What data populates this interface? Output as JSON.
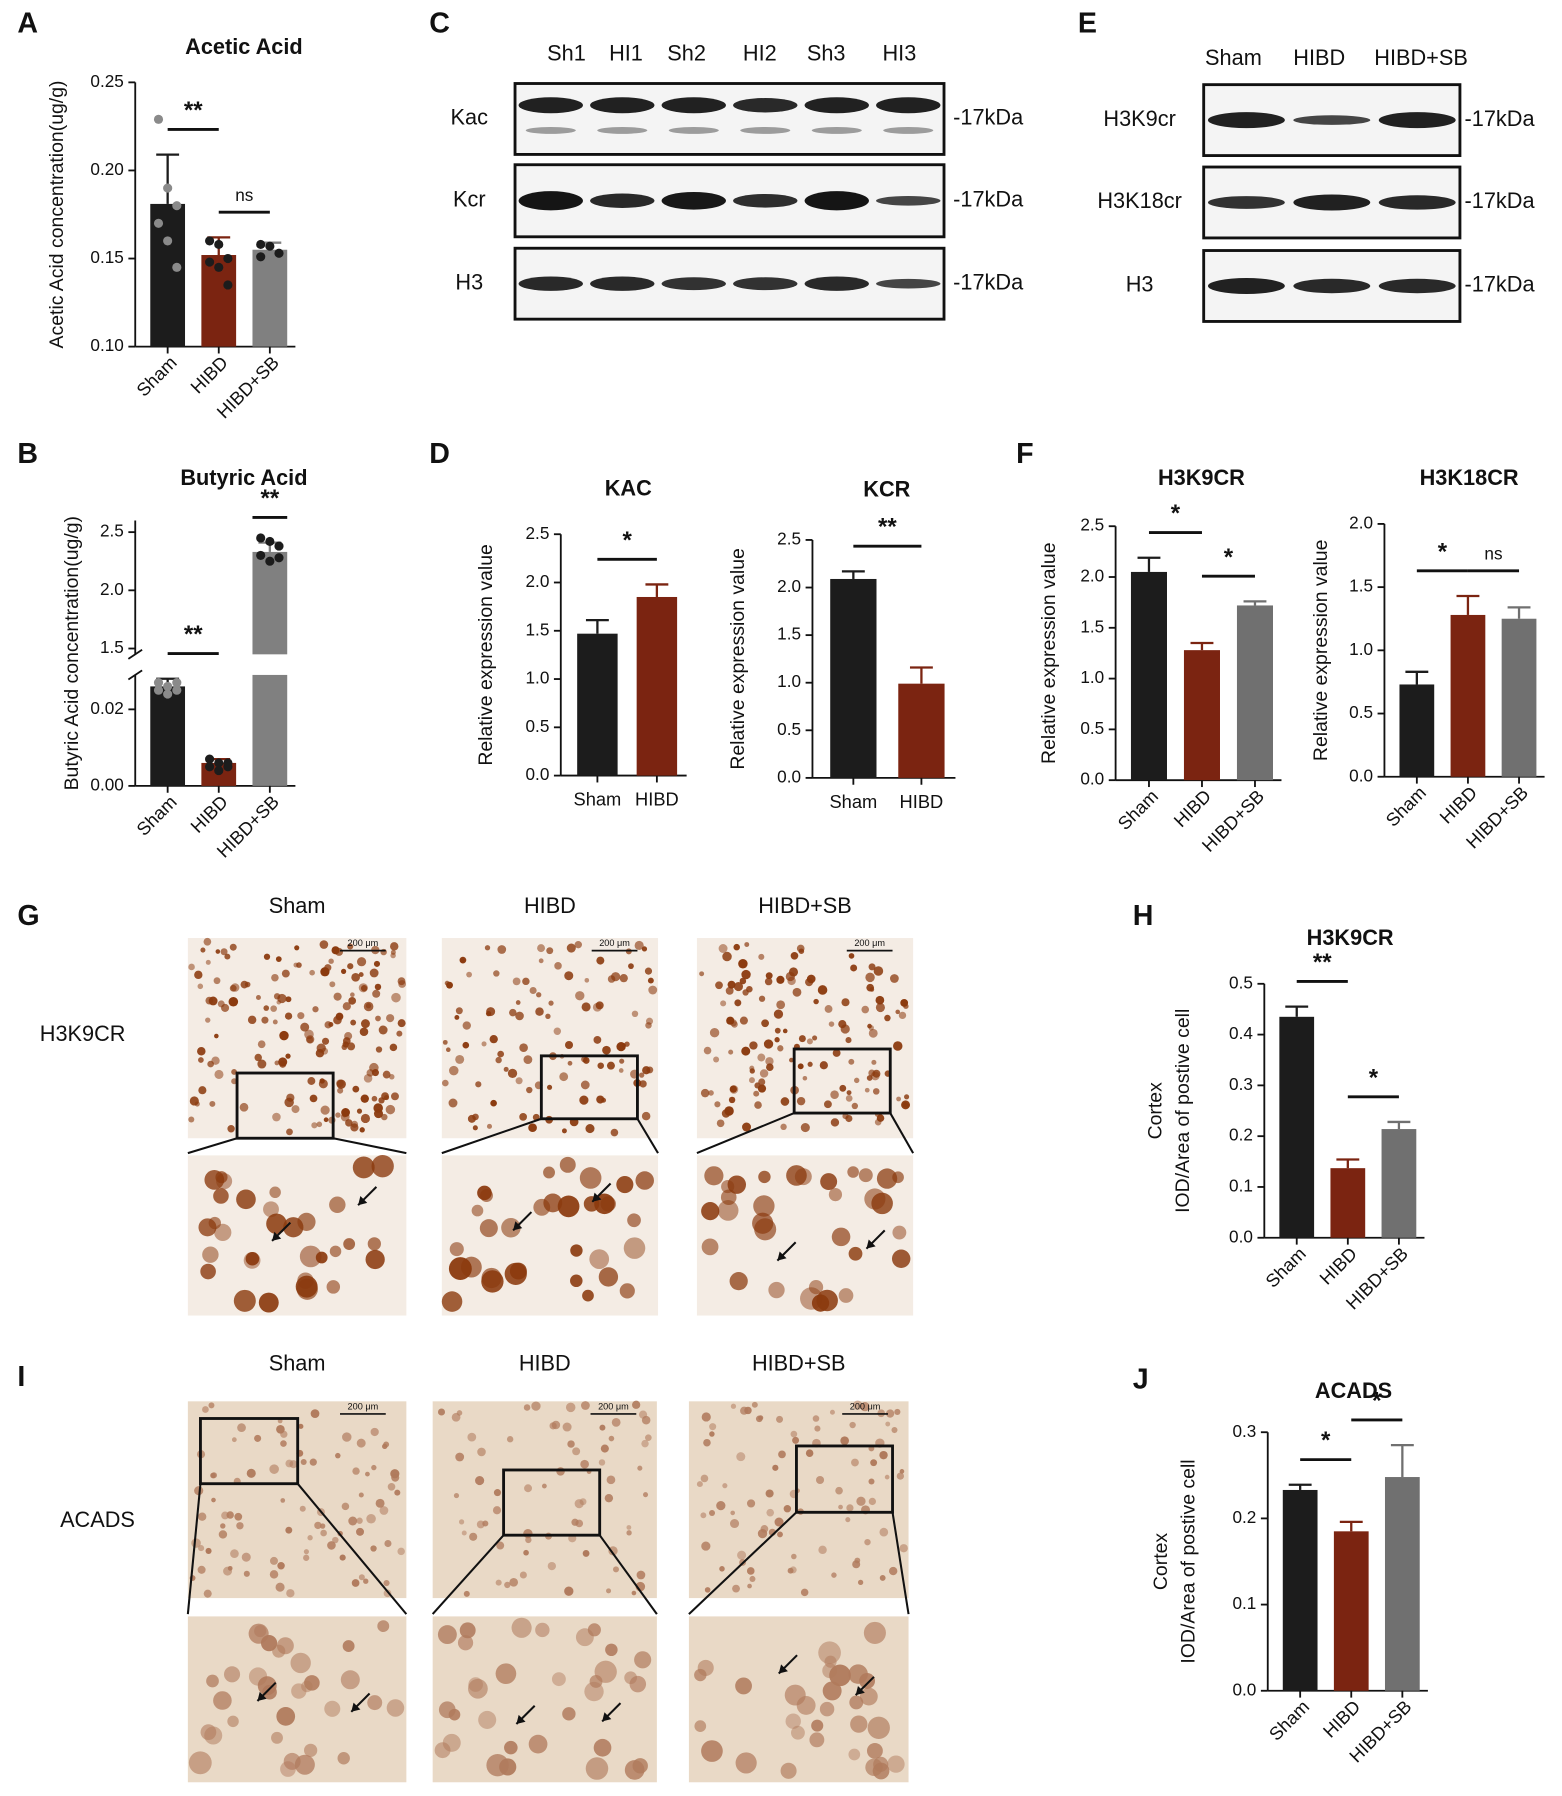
{
  "panel_labels": [
    "A",
    "B",
    "C",
    "D",
    "E",
    "F",
    "G",
    "H",
    "I",
    "J"
  ],
  "chart_data": [
    {
      "type": "bar",
      "title": "Acetic Acid",
      "ylabel": "Acetic  Acid concentration(ug/g)",
      "categories": [
        "Sham",
        "HIBD",
        "HIBD+SB"
      ],
      "colors": [
        "#1c1c1c",
        "#7b2411",
        "#808080"
      ],
      "values": [
        0.181,
        0.152,
        0.155
      ],
      "errors": [
        0.028,
        0.01,
        0.004
      ],
      "points": [
        [
          0.229,
          0.19,
          0.18,
          0.17,
          0.16,
          0.145
        ],
        [
          0.16,
          0.158,
          0.15,
          0.148,
          0.145,
          0.135
        ],
        [
          0.158,
          0.157,
          0.153,
          0.151
        ]
      ],
      "ylim": [
        0.1,
        0.25
      ],
      "yticks": [
        {
          "value": 0.1,
          "label": "0.10"
        },
        0.15,
        {
          "value": 0.2,
          "label": "0.20"
        },
        0.25
      ],
      "xlabel_rotation": 45,
      "annotations": [
        {
          "text": "**",
          "pair": [
            0,
            1
          ]
        },
        {
          "text": "ns",
          "pair": [
            1,
            2
          ]
        }
      ]
    },
    {
      "type": "bar",
      "title": "Butyric Acid",
      "ylabel": "Butyric  Acid concentration(ug/g)",
      "categories": [
        "Sham",
        "HIBD",
        "HIBD+SB"
      ],
      "colors": [
        "#1c1c1c",
        "#7b2411",
        "#808080"
      ],
      "values": [
        0.026,
        0.006,
        2.33
      ],
      "errors": [
        0.002,
        0.001,
        0.08
      ],
      "points": [
        [
          0.027,
          0.026,
          0.025,
          0.025,
          0.024,
          0.027
        ],
        [
          0.007,
          0.006,
          0.005,
          0.005,
          0.004,
          0.006
        ],
        [
          2.45,
          2.42,
          2.38,
          2.3,
          2.25,
          2.28
        ]
      ],
      "segments": [
        {
          "ylim": [
            0,
            0.029
          ],
          "yticks": [
            {
              "value": 0,
              "label": "0.00"
            },
            0.02
          ]
        },
        {
          "ylim": [
            1.45,
            2.6
          ],
          "yticks": [
            1.5,
            {
              "value": 2,
              "label": "2.0"
            },
            2.5
          ]
        }
      ],
      "xlabel_rotation": 45,
      "annotations": [
        {
          "text": "**",
          "pair": [
            0,
            1
          ]
        },
        {
          "text": "**",
          "pair": [
            2,
            2
          ]
        }
      ]
    },
    {
      "type": "bar",
      "title": "KAC",
      "ylabel": "Relative expression value",
      "categories": [
        "Sham",
        "HIBD"
      ],
      "colors": [
        "#1c1c1c",
        "#7b2411"
      ],
      "values": [
        1.47,
        1.85
      ],
      "errors": [
        0.14,
        0.13
      ],
      "ylim": [
        0,
        2.5
      ],
      "yticks": [
        {
          "value": 0,
          "label": "0.0"
        },
        0.5,
        {
          "value": 1,
          "label": "1.0"
        },
        1.5,
        {
          "value": 2,
          "label": "2.0"
        },
        2.5
      ],
      "xlabel_rotation": 0,
      "annotations": [
        {
          "text": "*",
          "pair": [
            0,
            1
          ]
        }
      ]
    },
    {
      "type": "bar",
      "title": "KCR",
      "ylabel": "Relative expression value",
      "categories": [
        "Sham",
        "HIBD"
      ],
      "colors": [
        "#1c1c1c",
        "#7b2411"
      ],
      "values": [
        2.09,
        0.99
      ],
      "errors": [
        0.08,
        0.17
      ],
      "ylim": [
        0,
        2.5
      ],
      "yticks": [
        {
          "value": 0,
          "label": "0.0"
        },
        0.5,
        {
          "value": 1,
          "label": "1.0"
        },
        1.5,
        {
          "value": 2,
          "label": "2.0"
        },
        2.5
      ],
      "xlabel_rotation": 0,
      "annotations": [
        {
          "text": "**",
          "pair": [
            0,
            1
          ]
        }
      ]
    },
    {
      "type": "bar",
      "title": "H3K9CR",
      "ylabel": "Relative expression value",
      "categories": [
        "Sham",
        "HIBD",
        "HIBD+SB"
      ],
      "colors": [
        "#1c1c1c",
        "#7b2411",
        "#707070"
      ],
      "values": [
        2.05,
        1.28,
        1.72
      ],
      "errors": [
        0.14,
        0.07,
        0.04
      ],
      "ylim": [
        0,
        2.5
      ],
      "yticks": [
        {
          "value": 0,
          "label": "0.0"
        },
        0.5,
        {
          "value": 1,
          "label": "1.0"
        },
        1.5,
        {
          "value": 2,
          "label": "2.0"
        },
        2.5
      ],
      "xlabel_rotation": 45,
      "annotations": [
        {
          "text": "*",
          "pair": [
            0,
            1
          ]
        },
        {
          "text": "*",
          "pair": [
            1,
            2
          ]
        }
      ]
    },
    {
      "type": "bar",
      "title": "H3K18CR",
      "ylabel": "Relative expression value",
      "categories": [
        "Sham",
        "HIBD",
        "HIBD+SB"
      ],
      "colors": [
        "#1c1c1c",
        "#7b2411",
        "#707070"
      ],
      "values": [
        0.73,
        1.28,
        1.25
      ],
      "errors": [
        0.1,
        0.15,
        0.09
      ],
      "ylim": [
        0,
        2
      ],
      "yticks": [
        {
          "value": 0,
          "label": "0.0"
        },
        0.5,
        {
          "value": 1,
          "label": "1.0"
        },
        1.5,
        {
          "value": 2,
          "label": "2.0"
        }
      ],
      "xlabel_rotation": 45,
      "annotations": [
        {
          "text": "*",
          "pair": [
            0,
            1
          ]
        },
        {
          "text": "ns",
          "pair": [
            1,
            2
          ]
        }
      ]
    },
    {
      "type": "bar",
      "title": "H3K9CR",
      "ylabel": [
        "Cortex",
        "IOD/Area of postive cell"
      ],
      "categories": [
        "Sham",
        "HIBD",
        "HIBD+SB"
      ],
      "colors": [
        "#1c1c1c",
        "#7b2411",
        "#707070"
      ],
      "values": [
        0.435,
        0.137,
        0.214
      ],
      "errors": [
        0.02,
        0.017,
        0.014
      ],
      "ylim": [
        0,
        0.5
      ],
      "yticks": [
        {
          "value": 0,
          "label": "0.0"
        },
        0.1,
        0.2,
        0.3,
        0.4,
        0.5
      ],
      "xlabel_rotation": 45,
      "annotations": [
        {
          "text": "**",
          "pair": [
            0,
            1
          ]
        },
        {
          "text": "*",
          "pair": [
            1,
            2
          ]
        }
      ]
    },
    {
      "type": "bar",
      "title": "ACADS",
      "ylabel": [
        "Cortex",
        "IOD/Area of postive cell"
      ],
      "categories": [
        "Sham",
        "HIBD",
        "HIBD+SB"
      ],
      "colors": [
        "#1c1c1c",
        "#7b2411",
        "#707070"
      ],
      "values": [
        0.233,
        0.185,
        0.248
      ],
      "errors": [
        0.006,
        0.011,
        0.037
      ],
      "ylim": [
        0,
        0.3
      ],
      "yticks": [
        {
          "value": 0,
          "label": "0.0"
        },
        0.1,
        0.2,
        0.3
      ],
      "xlabel_rotation": 45,
      "annotations": [
        {
          "text": "*",
          "pair": [
            0,
            1
          ]
        },
        {
          "text": "*",
          "pair": [
            1,
            2
          ]
        }
      ]
    }
  ],
  "blots": [
    {
      "lanes": [
        "Sh1",
        "HI1",
        "Sh2",
        "HI2",
        "Sh3",
        "HI3"
      ],
      "rows": [
        "Kac",
        "Kcr",
        "H3"
      ],
      "marker": "-17kDa"
    },
    {
      "lanes": [
        "Sham",
        "HIBD",
        "HIBD+SB"
      ],
      "rows": [
        "H3K9cr",
        "H3K18cr",
        "H3"
      ],
      "marker": "-17kDa"
    }
  ],
  "micrographs": [
    {
      "columns": [
        "Sham",
        "HIBD",
        "HIBD+SB"
      ],
      "row_label": "H3K9CR",
      "scale_bar": "200 μm"
    },
    {
      "columns": [
        "Sham",
        "HIBD",
        "HIBD+SB"
      ],
      "row_label": "ACADS",
      "scale_bar": "200 μm"
    }
  ]
}
